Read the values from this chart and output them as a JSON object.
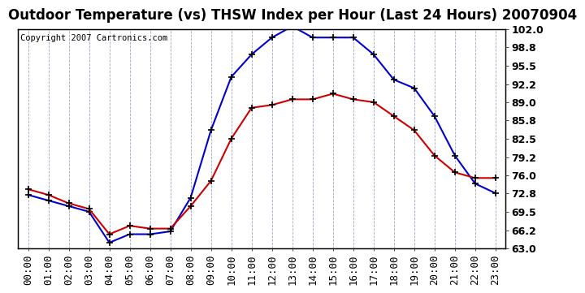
{
  "title": "Outdoor Temperature (vs) THSW Index per Hour (Last 24 Hours) 20070904",
  "copyright": "Copyright 2007 Cartronics.com",
  "hours": [
    "00:00",
    "01:00",
    "02:00",
    "03:00",
    "04:00",
    "05:00",
    "06:00",
    "07:00",
    "08:00",
    "09:00",
    "10:00",
    "11:00",
    "12:00",
    "13:00",
    "14:00",
    "15:00",
    "16:00",
    "17:00",
    "18:00",
    "19:00",
    "20:00",
    "21:00",
    "22:00",
    "23:00"
  ],
  "temp": [
    73.5,
    72.5,
    71.0,
    70.0,
    65.5,
    67.0,
    66.5,
    66.5,
    70.5,
    75.0,
    82.5,
    88.0,
    88.5,
    89.5,
    89.5,
    90.5,
    89.5,
    89.0,
    86.5,
    84.0,
    79.5,
    76.5,
    75.5,
    75.5
  ],
  "thsw": [
    72.5,
    71.5,
    70.5,
    69.5,
    64.0,
    65.5,
    65.5,
    66.0,
    72.0,
    84.0,
    93.5,
    97.5,
    100.5,
    102.5,
    100.5,
    100.5,
    100.5,
    97.5,
    93.0,
    91.5,
    86.5,
    79.5,
    74.5,
    72.8
  ],
  "temp_color": "#cc0000",
  "thsw_color": "#0000cc",
  "ylim_min": 63.0,
  "ylim_max": 102.0,
  "yticks": [
    63.0,
    66.2,
    69.5,
    72.8,
    76.0,
    79.2,
    82.5,
    85.8,
    89.0,
    92.2,
    95.5,
    98.8,
    102.0
  ],
  "ytick_labels": [
    "63.0",
    "66.2",
    "69.5",
    "72.8",
    "76.0",
    "79.2",
    "82.5",
    "85.8",
    "89.0",
    "92.2",
    "95.5",
    "98.8",
    "102.0"
  ],
  "bg_color": "#ffffff",
  "plot_bg_color": "#ffffff",
  "grid_color": "#9999bb",
  "title_fontsize": 12,
  "copyright_fontsize": 7.5,
  "tick_fontsize": 9,
  "ytick_fontsize": 9,
  "marker": "+",
  "marker_size": 5,
  "line_width": 1.5
}
